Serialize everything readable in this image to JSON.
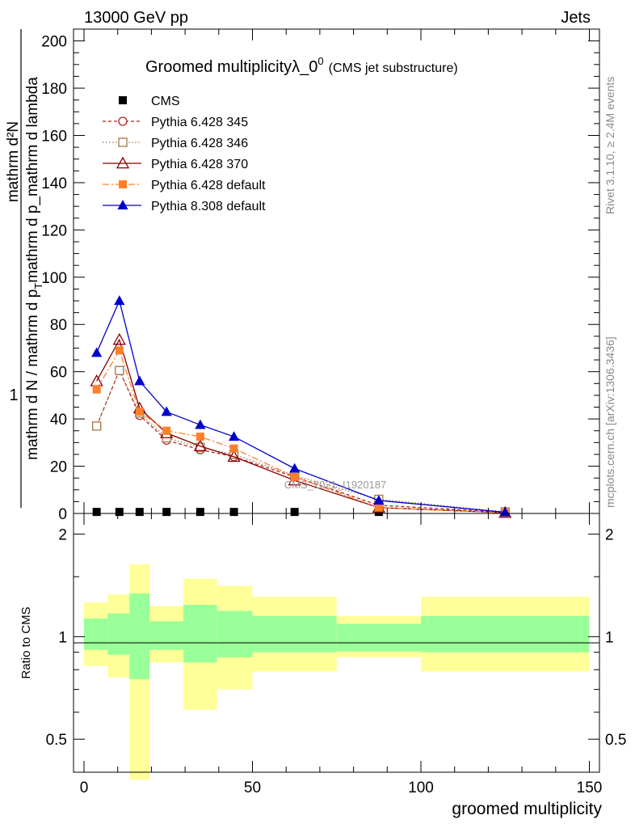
{
  "header": {
    "left": "13000 GeV pp",
    "right": "Jets"
  },
  "side": {
    "rivet": "Rivet 3.1.10, ≥ 2.4M events",
    "mcplots": "mcplots.cern.ch [arXiv:1306.3436]"
  },
  "chart_data": [
    {
      "type": "line",
      "title": "Groomed multiplicityλ_0",
      "title_sup": "0",
      "subtitle": "(CMS jet substructure)",
      "watermark": "CMS_2021_I1920187",
      "xlabel": "groomed multiplicity",
      "ylabel_num": "1",
      "ylabel_line1": "mathrm d N / mathrm d p",
      "ylabel_sub": "T",
      "ylabel_line2": "mathrm d p_mathrm d lambda",
      "ylabel_top": "mathrm d²N",
      "xlim": [
        -5,
        152
      ],
      "ylim": [
        0,
        205
      ],
      "yticks": [
        0,
        20,
        40,
        60,
        80,
        100,
        120,
        140,
        160,
        180,
        200
      ],
      "xticks": [
        0,
        50,
        100,
        150
      ],
      "x": [
        3.75,
        10.5,
        16.5,
        24.5,
        34.5,
        44.5,
        62.5,
        87.5,
        125
      ],
      "series": [
        {
          "name": "CMS",
          "color": "#000000",
          "marker": "square-filled",
          "dash": "none",
          "values": [
            0.3,
            0.3,
            0.3,
            0.3,
            0.3,
            0.3,
            0.3,
            0.3,
            0.3
          ]
        },
        {
          "name": "Pythia 6.428 345",
          "color": "#b22222",
          "marker": "circle-open",
          "dash": "4,3",
          "values": [
            37,
            60.5,
            41.5,
            31,
            27,
            24,
            15.5,
            3.5,
            0.5
          ]
        },
        {
          "name": "Pythia 6.428 346",
          "color": "#a0784a",
          "marker": "square-open",
          "dash": "1.5,2.5",
          "values": [
            37,
            60.5,
            42.5,
            32,
            28,
            25,
            16,
            6,
            0.7
          ]
        },
        {
          "name": "Pythia 6.428 370",
          "color": "#8b0000",
          "marker": "triangle-open",
          "dash": "none",
          "values": [
            56,
            73.5,
            44.5,
            34,
            28.5,
            24,
            14,
            2.5,
            0.3
          ]
        },
        {
          "name": "Pythia 6.428 default",
          "color": "#ff7f2a",
          "marker": "square-filled",
          "dash": "8,3,2,3",
          "values": [
            52.5,
            69,
            43,
            35,
            32.5,
            27.5,
            15.5,
            2.5,
            0.3
          ]
        },
        {
          "name": "Pythia 8.308 default",
          "color": "#0000cc",
          "marker": "triangle-filled",
          "dash": "none",
          "values": [
            68,
            90,
            56,
            43,
            37.5,
            32.5,
            19,
            5.5,
            0.5
          ]
        }
      ]
    },
    {
      "type": "area",
      "ylabel": "Ratio to CMS",
      "ylog": true,
      "ylim": [
        0.4,
        2.3
      ],
      "yticks": [
        0.5,
        1,
        2
      ],
      "bins": [
        {
          "x0": 0,
          "x1": 7,
          "green": [
            0.915,
            1.13
          ],
          "yellow": [
            0.82,
            1.26
          ]
        },
        {
          "x0": 7,
          "x1": 13.5,
          "green": [
            0.885,
            1.17
          ],
          "yellow": [
            0.76,
            1.33
          ]
        },
        {
          "x0": 13.5,
          "x1": 19.5,
          "green": [
            0.75,
            1.34
          ],
          "yellow": [
            0.38,
            1.63
          ]
        },
        {
          "x0": 19.5,
          "x1": 29.5,
          "green": [
            0.915,
            1.11
          ],
          "yellow": [
            0.84,
            1.23
          ]
        },
        {
          "x0": 29.5,
          "x1": 39.5,
          "green": [
            0.84,
            1.24
          ],
          "yellow": [
            0.61,
            1.48
          ]
        },
        {
          "x0": 39.5,
          "x1": 50,
          "green": [
            0.87,
            1.19
          ],
          "yellow": [
            0.7,
            1.41
          ]
        },
        {
          "x0": 50,
          "x1": 75,
          "green": [
            0.9,
            1.15
          ],
          "yellow": [
            0.79,
            1.31
          ]
        },
        {
          "x0": 75,
          "x1": 100,
          "green": [
            0.905,
            1.09
          ],
          "yellow": [
            0.87,
            1.15
          ]
        },
        {
          "x0": 100,
          "x1": 150,
          "green": [
            0.9,
            1.15
          ],
          "yellow": [
            0.79,
            1.31
          ]
        }
      ],
      "colors": {
        "green": "#99ff99",
        "yellow": "#ffff99"
      }
    }
  ]
}
